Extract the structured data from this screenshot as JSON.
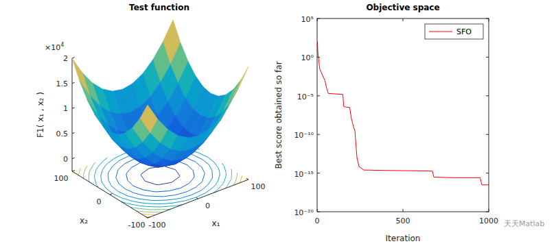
{
  "chart_data": [
    {
      "type": "surface",
      "title": "Test function",
      "xlabel": "x₁",
      "ylabel": "x₂",
      "zlabel": "F1( x₁ , x₂ )",
      "x": [
        -100,
        -80,
        -60,
        -40,
        -20,
        0,
        20,
        40,
        60,
        80,
        100
      ],
      "y": [
        -100,
        -80,
        -60,
        -40,
        -20,
        0,
        20,
        40,
        60,
        80,
        100
      ],
      "z": [
        [
          20000,
          16400,
          13600,
          11600,
          10400,
          10000,
          10400,
          11600,
          13600,
          16400,
          20000
        ],
        [
          16400,
          12800,
          10000,
          8000,
          6800,
          6400,
          6800,
          8000,
          10000,
          12800,
          16400
        ],
        [
          13600,
          10000,
          7200,
          5200,
          4000,
          3600,
          4000,
          5200,
          7200,
          10000,
          13600
        ],
        [
          11600,
          8000,
          5200,
          3200,
          2000,
          1600,
          2000,
          3200,
          5200,
          8000,
          11600
        ],
        [
          10400,
          6800,
          4000,
          2000,
          800,
          400,
          800,
          2000,
          4000,
          6800,
          10400
        ],
        [
          10000,
          6400,
          3600,
          1600,
          400,
          0,
          400,
          1600,
          3600,
          6400,
          10000
        ],
        [
          10400,
          6800,
          4000,
          2000,
          800,
          400,
          800,
          2000,
          4000,
          6800,
          10400
        ],
        [
          11600,
          8000,
          5200,
          3200,
          2000,
          1600,
          2000,
          3200,
          5200,
          8000,
          11600
        ],
        [
          13600,
          10000,
          7200,
          5200,
          4000,
          3600,
          4000,
          5200,
          7200,
          10000,
          13600
        ],
        [
          16400,
          12800,
          10000,
          8000,
          6800,
          6400,
          6800,
          8000,
          10000,
          12800,
          16400
        ],
        [
          20000,
          16400,
          13600,
          11600,
          10400,
          10000,
          10400,
          11600,
          13600,
          16400,
          20000
        ]
      ],
      "xlim": [
        -100,
        100
      ],
      "ylim": [
        -100,
        100
      ],
      "zlim": [
        -2500,
        20000
      ],
      "xticks": [
        -100,
        0,
        100
      ],
      "yticks": [
        -100,
        0,
        100
      ],
      "zticks": [
        0,
        {
          "value": 5000,
          "label": "0.5"
        },
        {
          "value": 10000,
          "label": "1"
        },
        {
          "value": 15000,
          "label": "1.5"
        },
        {
          "value": 20000,
          "label": "2"
        }
      ],
      "z_multiplier": "×10",
      "z_multiplier_exponent": "4",
      "contour_levels": [
        1000,
        3000,
        5000,
        7000,
        9000,
        11000,
        13000,
        15000,
        17000,
        19000
      ]
    },
    {
      "type": "line",
      "title": "Objective space",
      "xlabel": "Iteration",
      "ylabel": "Best score obtained so far",
      "log": "y",
      "xlim": [
        0,
        1000
      ],
      "ylim": [
        1e-20,
        100000
      ],
      "xticks": [
        0,
        500,
        1000
      ],
      "yticks": [
        {
          "value": 1e-20,
          "label": "10⁻²⁰"
        },
        {
          "value": 1e-15,
          "label": "10⁻¹⁵"
        },
        {
          "value": 1e-10,
          "label": "10⁻¹⁰"
        },
        {
          "value": 1e-05,
          "label": "10⁻⁵"
        },
        {
          "value": 1,
          "label": "10⁰"
        },
        {
          "value": 100000,
          "label": "10⁵"
        }
      ],
      "legend": "northeast",
      "x": [
        1,
        5,
        10,
        15,
        25,
        35,
        45,
        55,
        65,
        100,
        150,
        155,
        190,
        200,
        212,
        220,
        232,
        244,
        272,
        400,
        550,
        672,
        680,
        800,
        950,
        960,
        1000
      ],
      "series": [
        {
          "name": "SFO",
          "color": "#ff0000",
          "values": [
            100,
            3,
            0.3,
            0.03,
            0.01,
            0.003,
            0.001,
            0.0001,
            2e-05,
            1.8e-05,
            1.5e-05,
            4e-07,
            3e-07,
            1e-08,
            1e-09,
            3e-10,
            1e-13,
            7e-15,
            2.5e-15,
            2.2e-15,
            2e-15,
            1.8e-15,
            3e-16,
            2.5e-16,
            2.5e-16,
            3e-17,
            3e-17
          ]
        }
      ],
      "watermark": "天天Matlab"
    }
  ]
}
